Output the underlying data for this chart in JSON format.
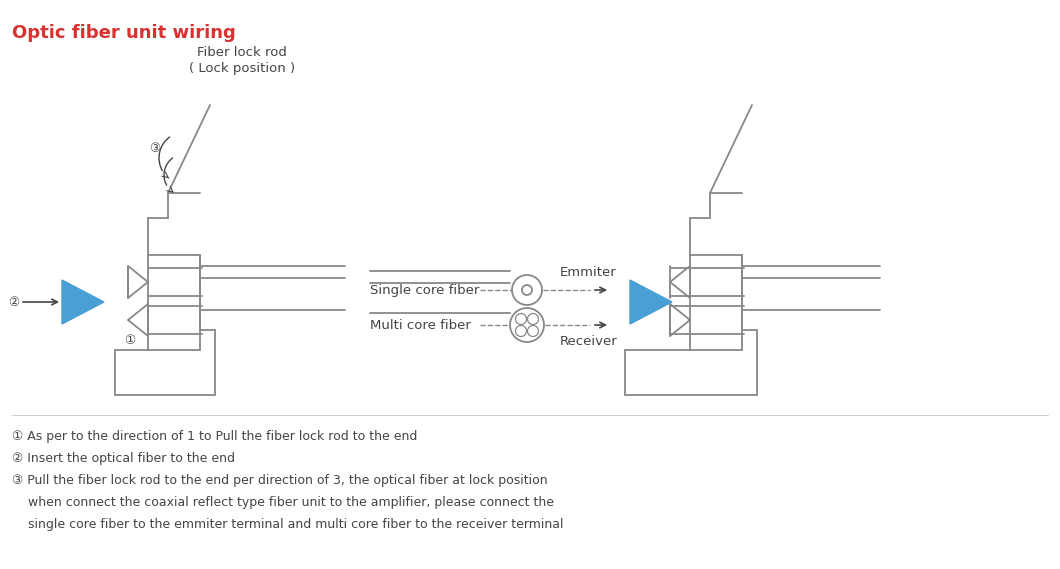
{
  "title": "Optic fiber unit wiring",
  "title_color": "#d93030",
  "bg_color": "#ffffff",
  "line_color": "#888888",
  "text_color": "#444444",
  "blue_color": "#4a9fd4",
  "label1": "Fiber lock rod",
  "label2": "( Lock position )",
  "label_single": "Single core fiber",
  "label_multi": "Multi core fiber",
  "label_emmiter": "Emmiter",
  "label_receiver": "Receiver",
  "note1": "① As per to the direction of 1 to Pull the fiber lock rod to the end",
  "note2": "② Insert the optical fiber to the end",
  "note3": "③ Pull the fiber lock rod to the end per direction of 3, the optical fiber at lock position",
  "note4": "    when connect the coaxial reflect type fiber unit to the amplifier, please connect the",
  "note5": "    single core fiber to the emmiter terminal and multi core fiber to the receiver terminal"
}
